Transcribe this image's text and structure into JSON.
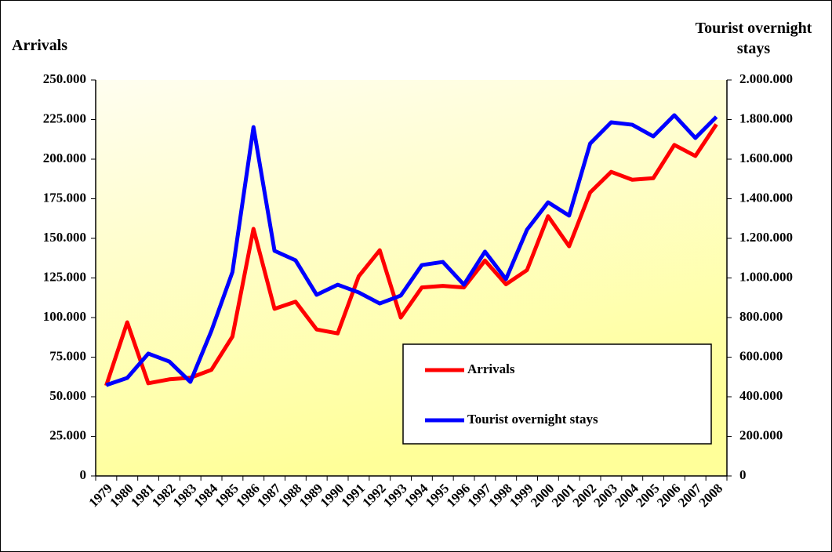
{
  "chart_data": {
    "type": "line",
    "y_label": "Arrivals",
    "y2_label": "Tourist overnight stays",
    "categories": [
      "1979",
      "1980",
      "1981",
      "1982",
      "1983",
      "1984",
      "1985",
      "1986",
      "1987",
      "1988",
      "1989",
      "1990",
      "1991",
      "1992",
      "1993",
      "1994",
      "1995",
      "1996",
      "1997",
      "1998",
      "1999",
      "2000",
      "2001",
      "2002",
      "2003",
      "2004",
      "2005",
      "2006",
      "2007",
      "2008"
    ],
    "series": [
      {
        "name": "Arrivals",
        "color": "#ff0000",
        "values": [
          57000,
          97000,
          58500,
          61000,
          62000,
          67000,
          88000,
          156000,
          105500,
          110000,
          92500,
          90000,
          126000,
          142500,
          100000,
          119000,
          120000,
          119000,
          136000,
          121000,
          130000,
          164000,
          145000,
          179000,
          192000,
          187000,
          188000,
          209000,
          202000,
          222000
        ]
      },
      {
        "name": "Tourist overnight stays",
        "color": "#0000ff",
        "axis": "y2",
        "values": [
          459000,
          495000,
          618000,
          578000,
          475000,
          733000,
          1030000,
          1762000,
          1137000,
          1089000,
          915000,
          966000,
          927000,
          871000,
          911000,
          1065000,
          1081000,
          966000,
          1133000,
          994000,
          1244000,
          1382000,
          1315000,
          1679000,
          1786000,
          1774000,
          1715000,
          1822000,
          1707000,
          1814000
        ]
      }
    ],
    "ylim": [
      0,
      250000
    ],
    "yticks": [
      0,
      {
        "value": 25000,
        "label": "25.000"
      },
      {
        "value": 50000,
        "label": "50.000"
      },
      {
        "value": 75000,
        "label": "75.000"
      },
      {
        "value": 100000,
        "label": "100.000"
      },
      {
        "value": 125000,
        "label": "125.000"
      },
      {
        "value": 150000,
        "label": "150.000"
      },
      {
        "value": 175000,
        "label": "175.000"
      },
      {
        "value": 200000,
        "label": "200.000"
      },
      {
        "value": 225000,
        "label": "225.000"
      },
      {
        "value": 250000,
        "label": "250.000"
      }
    ],
    "y2lim": [
      0,
      2000000
    ],
    "y2ticks": [
      0,
      {
        "value": 200000,
        "label": "200.000"
      },
      {
        "value": 400000,
        "label": "400.000"
      },
      {
        "value": 600000,
        "label": "600.000"
      },
      {
        "value": 800000,
        "label": "800.000"
      },
      {
        "value": 1000000,
        "label": "1.000.000"
      },
      {
        "value": 1200000,
        "label": "1.200.000"
      },
      {
        "value": 1400000,
        "label": "1.400.000"
      },
      {
        "value": 1600000,
        "label": "1.600.000"
      },
      {
        "value": 1800000,
        "label": "1.800.000"
      },
      {
        "value": 2000000,
        "label": "2.000.000"
      }
    ],
    "grid": false,
    "legend": "lower-right"
  }
}
